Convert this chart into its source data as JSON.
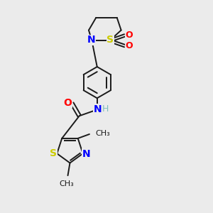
{
  "background_color": "#ebebeb",
  "bond_color": "#1a1a1a",
  "figsize": [
    3.0,
    3.0
  ],
  "dpi": 100,
  "lw": 1.4,
  "colors": {
    "S": "#cccc00",
    "N": "#0000ff",
    "O": "#ff0000",
    "H": "#7fbfbf",
    "C": "#1a1a1a"
  }
}
